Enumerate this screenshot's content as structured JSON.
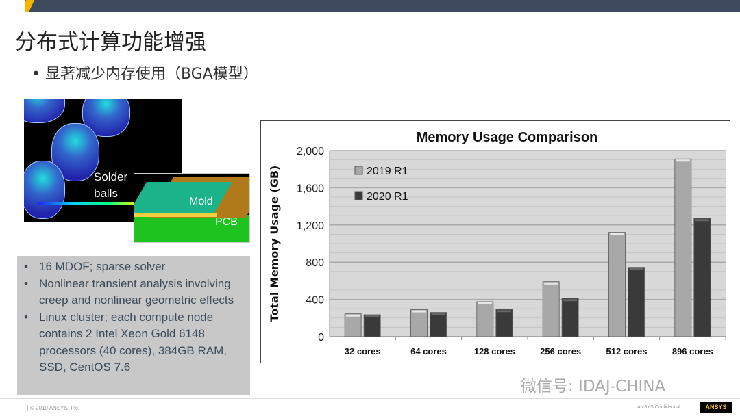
{
  "slide": {
    "title": "分布式计算功能增强",
    "bullet": "显著减少内存使用（BGA模型）"
  },
  "figure": {
    "label_solder": "Solder balls",
    "label_mold": "Mold",
    "label_pcb": "PCB"
  },
  "specs": [
    "16 MDOF; sparse solver",
    "Nonlinear transient analysis involving creep and nonlinear geometric effects",
    "Linux cluster; each compute node contains 2 Intel Xeon Gold 6148 processors (40 cores), 384GB RAM, SSD, CentOS 7.6"
  ],
  "watermark": "微信号: IDAJ-CHINA",
  "footer": {
    "copyright": "© 2019 ANSYS, Inc.",
    "confidential": "ANSYS Confidential",
    "logo": "ANSYS"
  },
  "chart_data": {
    "type": "bar",
    "title": "Memory Usage Comparison",
    "xlabel": "",
    "ylabel": "Total Memory Usage (GB)",
    "categories": [
      "32 cores",
      "64 cores",
      "128 cores",
      "256 cores",
      "512 cores",
      "896 cores"
    ],
    "series": [
      {
        "name": "2019 R1",
        "color": "#a8a8a8",
        "values": [
          245,
          290,
          375,
          590,
          1120,
          1910
        ]
      },
      {
        "name": "2020 R1",
        "color": "#3a3a3a",
        "values": [
          235,
          260,
          292,
          410,
          745,
          1270
        ]
      }
    ],
    "ylim": [
      0,
      2000
    ],
    "yticks": [
      "0",
      "400",
      "800",
      "1,200",
      "1,600",
      "2,000"
    ],
    "ytick_values": [
      0,
      400,
      800,
      1200,
      1600,
      2000
    ],
    "grid": true,
    "legend": "top-left"
  }
}
